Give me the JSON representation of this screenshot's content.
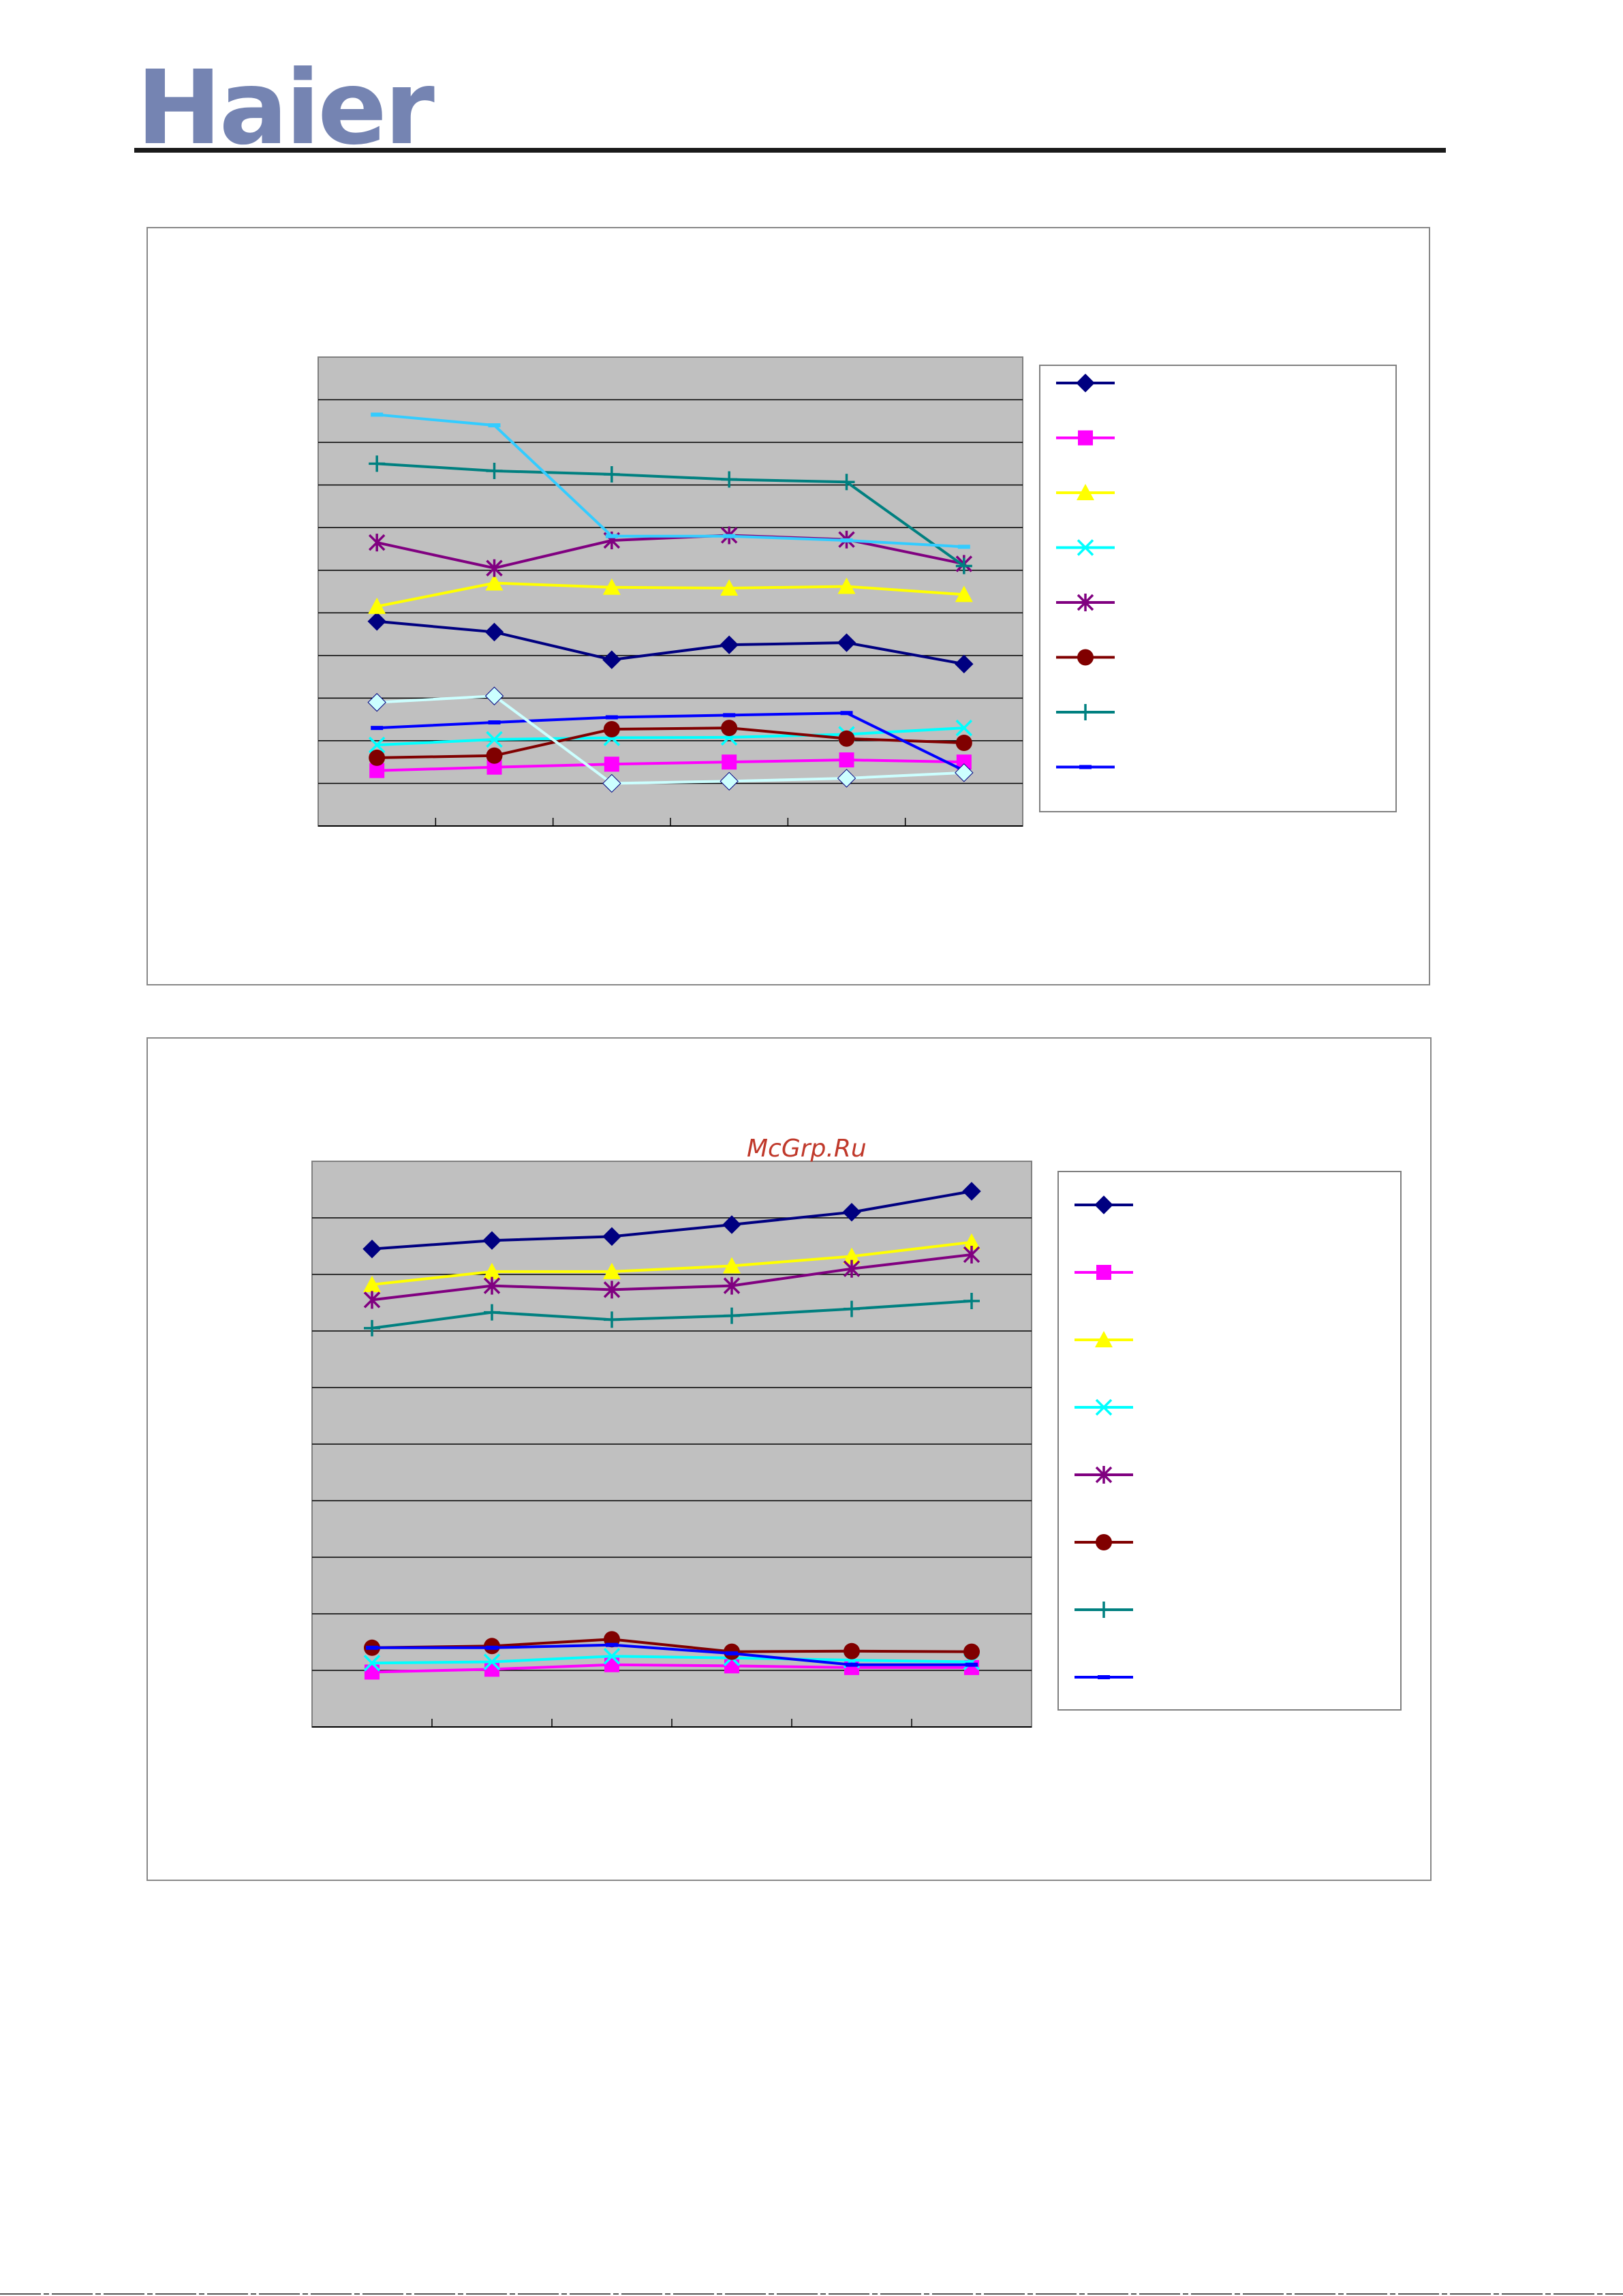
{
  "header": {
    "logo_text": "Haier",
    "brand_color": "#7584b2",
    "rule_color": "#1a1a1a"
  },
  "watermark": {
    "text": "McGrp.Ru",
    "color": "#c0392b"
  },
  "chart_data": [
    {
      "type": "line",
      "title": "",
      "xlabel": "",
      "ylabel": "",
      "x": [
        1,
        2,
        3,
        4,
        5,
        6
      ],
      "ylim": [
        0,
        11
      ],
      "grid": true,
      "legend": "right",
      "series": [
        {
          "color": "#000080",
          "marker": "diamond",
          "values": [
            4.8,
            4.55,
            3.9,
            4.25,
            4.3,
            3.8
          ]
        },
        {
          "color": "#ff00ff",
          "marker": "square",
          "values": [
            1.3,
            1.38,
            1.45,
            1.5,
            1.55,
            1.5
          ]
        },
        {
          "color": "#ffff00",
          "marker": "triangle",
          "values": [
            5.15,
            5.7,
            5.6,
            5.58,
            5.62,
            5.43
          ]
        },
        {
          "color": "#00ffff",
          "marker": "x",
          "values": [
            1.9,
            2.03,
            2.07,
            2.08,
            2.15,
            2.3
          ]
        },
        {
          "color": "#800080",
          "marker": "star",
          "values": [
            6.65,
            6.05,
            6.7,
            6.82,
            6.72,
            6.15
          ]
        },
        {
          "color": "#800000",
          "marker": "circle",
          "values": [
            1.6,
            1.65,
            2.27,
            2.3,
            2.05,
            1.95
          ]
        },
        {
          "color": "#008080",
          "marker": "plus",
          "values": [
            8.5,
            8.33,
            8.25,
            8.13,
            8.07,
            6.1
          ]
        },
        {
          "color": "#0000ff",
          "marker": "dash",
          "values": [
            2.3,
            2.43,
            2.55,
            2.6,
            2.65,
            1.3
          ]
        },
        {
          "color": "#33ccff",
          "marker": "dash",
          "values": [
            9.65,
            9.4,
            6.8,
            6.8,
            6.7,
            6.55
          ]
        },
        {
          "color": "#ccffff",
          "marker": "diamond",
          "values": [
            2.9,
            3.05,
            1.0,
            1.05,
            1.12,
            1.25
          ]
        }
      ]
    },
    {
      "type": "line",
      "title": "",
      "xlabel": "",
      "ylabel": "",
      "x": [
        1,
        2,
        3,
        4,
        5,
        6
      ],
      "ylim": [
        0,
        10
      ],
      "grid": true,
      "legend": "right",
      "series": [
        {
          "color": "#000080",
          "marker": "diamond",
          "values": [
            8.45,
            8.6,
            8.67,
            8.88,
            9.1,
            9.47
          ]
        },
        {
          "color": "#ff00ff",
          "marker": "square",
          "values": [
            0.97,
            1.02,
            1.1,
            1.08,
            1.05,
            1.05
          ]
        },
        {
          "color": "#ffff00",
          "marker": "triangle",
          "values": [
            7.82,
            8.05,
            8.05,
            8.15,
            8.32,
            8.57
          ]
        },
        {
          "color": "#00ffff",
          "marker": "x",
          "values": [
            1.13,
            1.15,
            1.25,
            1.22,
            1.18,
            1.15
          ]
        },
        {
          "color": "#800080",
          "marker": "star",
          "values": [
            7.55,
            7.8,
            7.73,
            7.8,
            8.1,
            8.35
          ]
        },
        {
          "color": "#800000",
          "marker": "circle",
          "values": [
            1.4,
            1.43,
            1.55,
            1.33,
            1.34,
            1.33
          ]
        },
        {
          "color": "#008080",
          "marker": "plus",
          "values": [
            7.05,
            7.33,
            7.2,
            7.27,
            7.39,
            7.53
          ]
        },
        {
          "color": "#0000ff",
          "marker": "dash",
          "values": [
            1.4,
            1.4,
            1.45,
            1.3,
            1.1,
            1.1
          ]
        }
      ]
    }
  ]
}
